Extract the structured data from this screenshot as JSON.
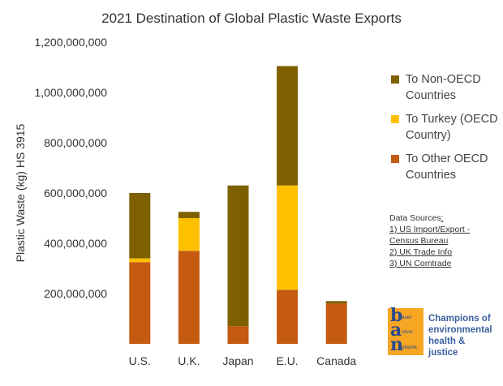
{
  "chart_data": {
    "type": "bar",
    "stacked": true,
    "title": "2021 Destination of Global Plastic Waste Exports",
    "ylabel": "Plastic Waste (kg) HS 3915",
    "xlabel": "",
    "ylim": [
      0,
      1200000000
    ],
    "yticks": [
      200000000,
      400000000,
      600000000,
      800000000,
      1000000000,
      1200000000
    ],
    "ytick_labels": [
      "200,000,000",
      "400,000,000",
      "600,000,000",
      "800,000,000",
      "1,000,000,000",
      "1,200,000,000"
    ],
    "grid": false,
    "legend_position": "right",
    "categories": [
      "U.S.",
      "U.K.",
      "Japan",
      "E.U.",
      "Canada"
    ],
    "series": [
      {
        "name": "To Other OECD Countries",
        "color": "#c55a11",
        "values": [
          325000000,
          370000000,
          70000000,
          215000000,
          160000000
        ]
      },
      {
        "name": "To Turkey (OECD Country)",
        "color": "#ffc000",
        "values": [
          15000000,
          130000000,
          0,
          415000000,
          0
        ]
      },
      {
        "name": "To Non-OECD Countries",
        "color": "#7f6000",
        "values": [
          260000000,
          25000000,
          560000000,
          475000000,
          10000000
        ]
      }
    ],
    "legend_order": [
      2,
      1,
      0
    ]
  },
  "sources": {
    "title_plain": "Data Sources",
    "title_underlined": ":",
    "lines": [
      "1) US Import/Export -",
      "Census Bureau",
      "2) UK Trade Info",
      "3) UN Comtrade"
    ]
  },
  "logo": {
    "letters": [
      "b",
      "a",
      "n"
    ],
    "small": [
      "asel",
      "ction",
      "etwork"
    ],
    "tagline": "Champions of environmental health & justice",
    "box_color": "#f6a623",
    "text_color": "#3b5fa0"
  }
}
